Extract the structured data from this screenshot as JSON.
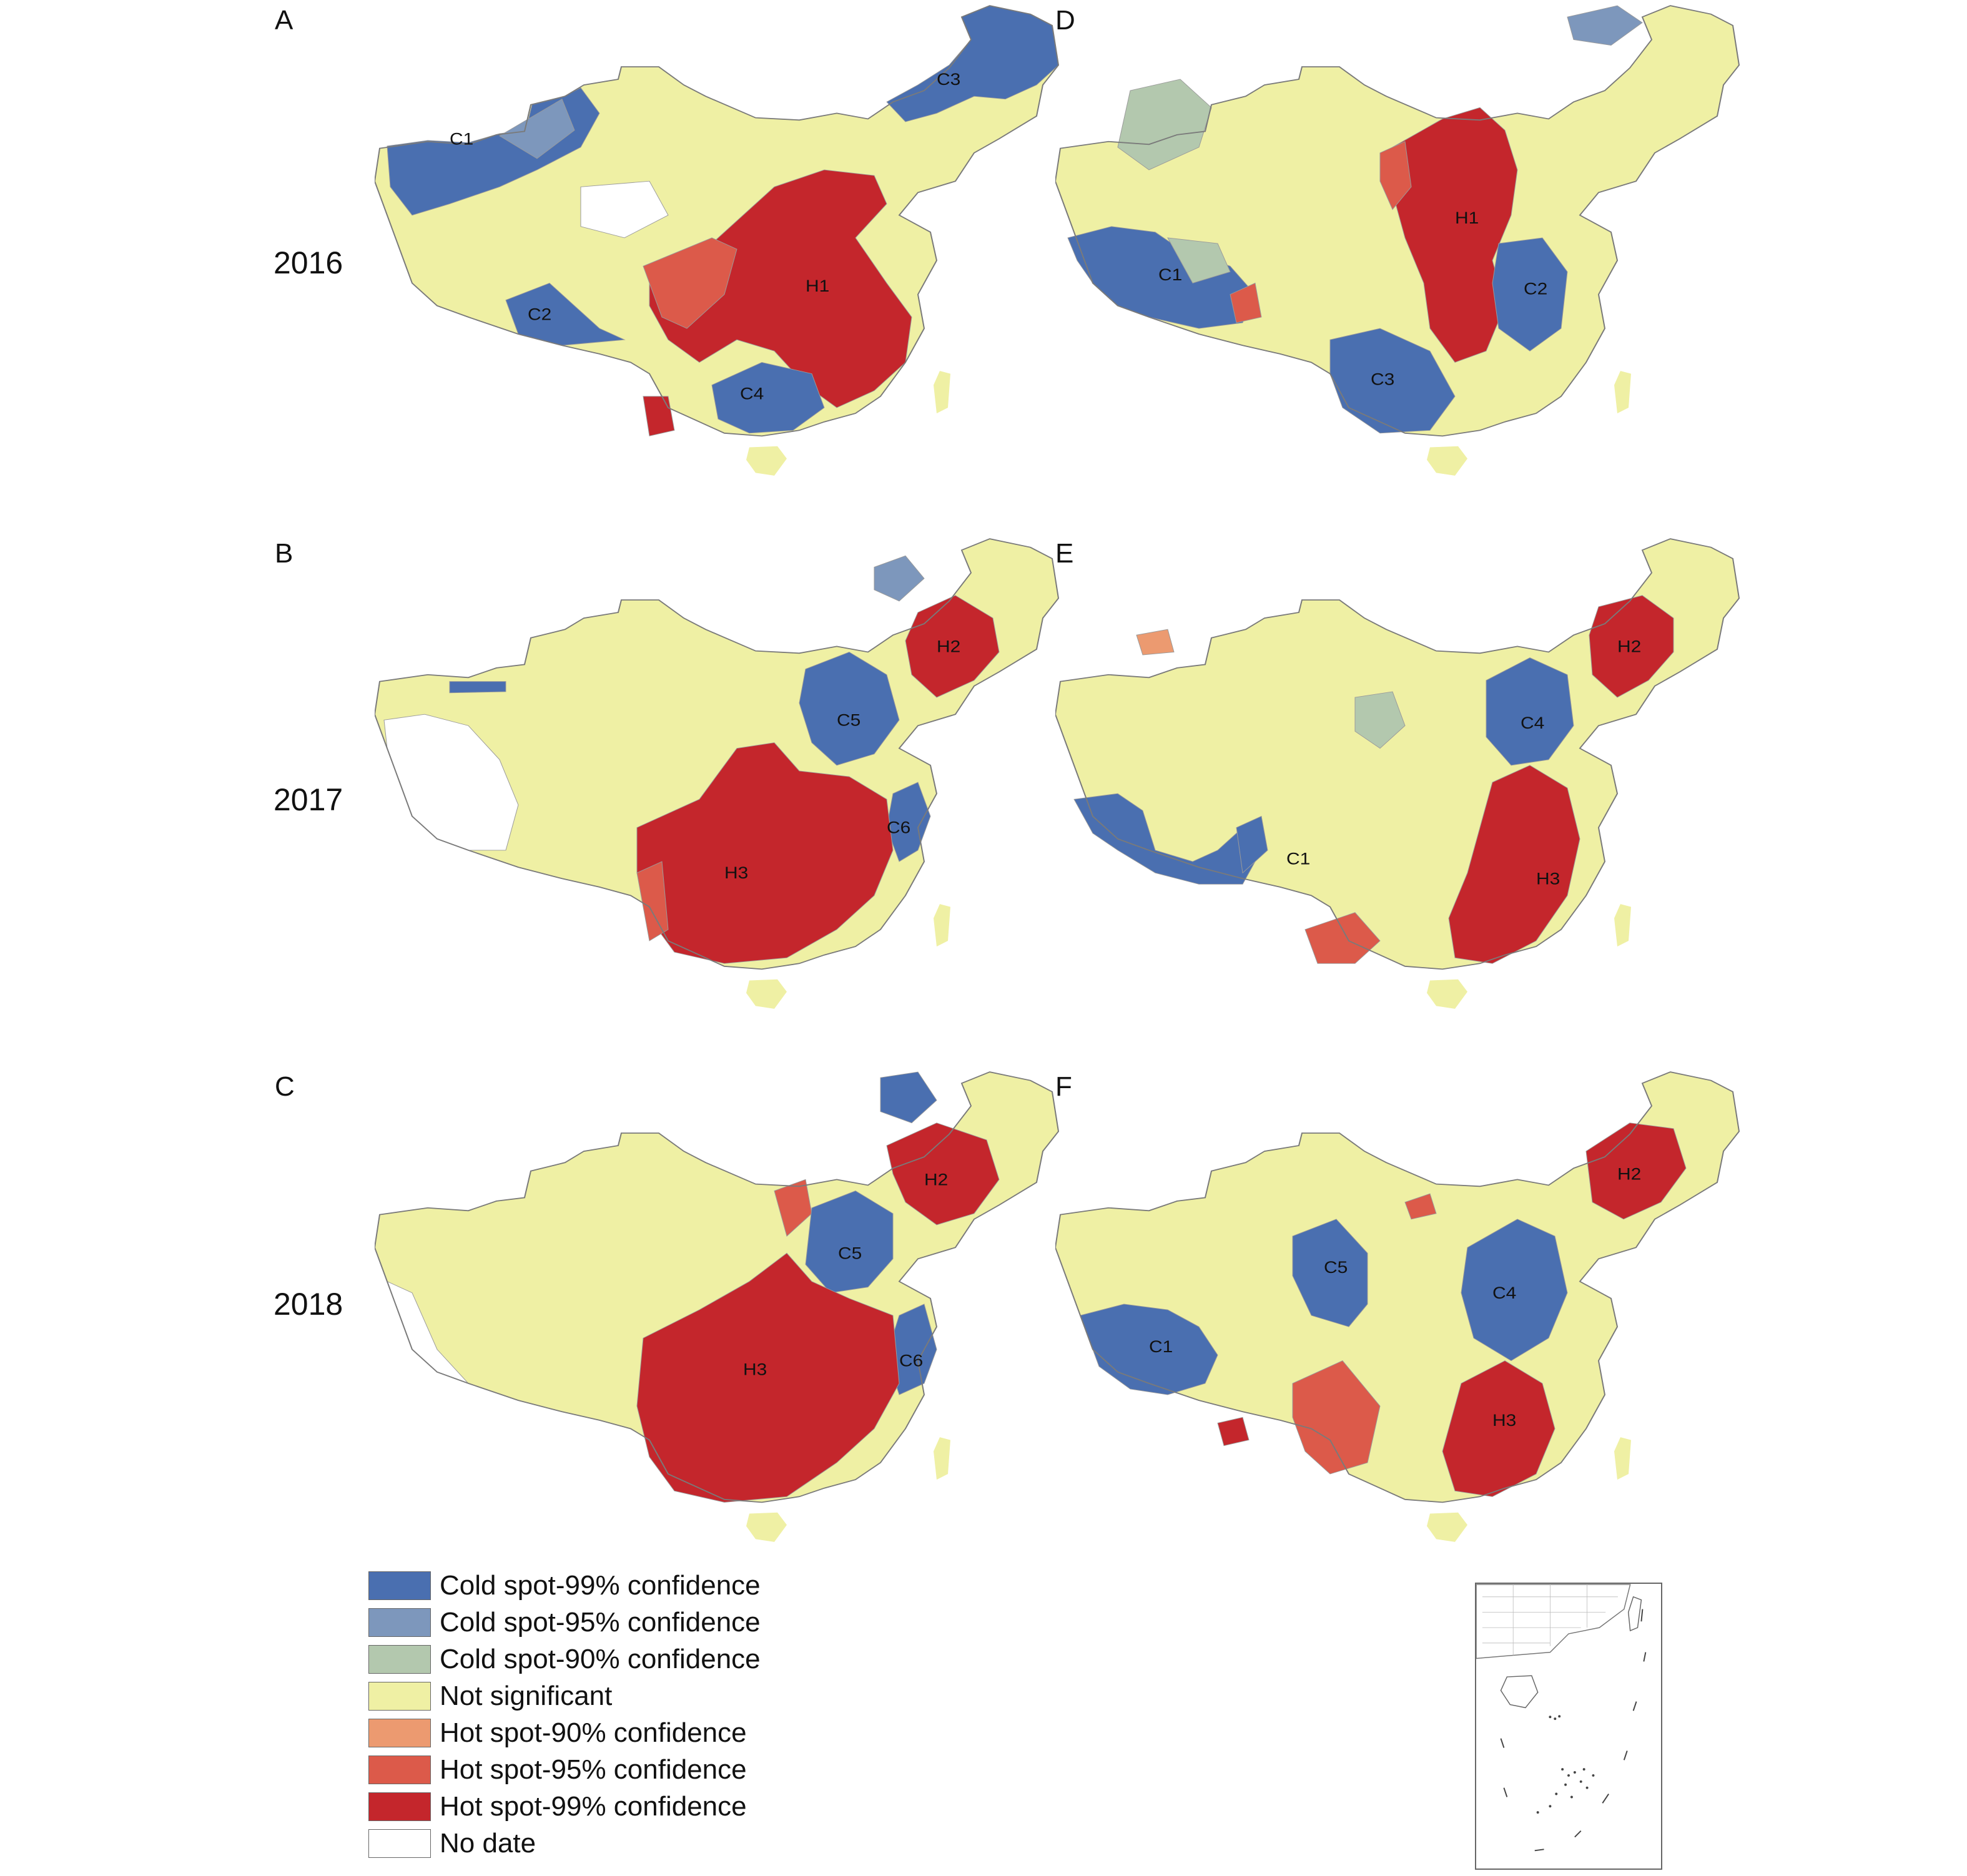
{
  "panels": [
    {
      "letter": "A",
      "clusters": [
        "C1",
        "C2",
        "C3",
        "C4",
        "H1"
      ]
    },
    {
      "letter": "D",
      "clusters": [
        "C1",
        "C2",
        "C3",
        "H1"
      ]
    },
    {
      "letter": "B",
      "clusters": [
        "C5",
        "C6",
        "H2",
        "H3"
      ]
    },
    {
      "letter": "E",
      "clusters": [
        "C1",
        "C4",
        "H2",
        "H3"
      ]
    },
    {
      "letter": "C",
      "clusters": [
        "C5",
        "C6",
        "H2",
        "H3"
      ]
    },
    {
      "letter": "F",
      "clusters": [
        "C1",
        "C4",
        "C5",
        "H2",
        "H3"
      ]
    }
  ],
  "years": [
    "2016",
    "2017",
    "2018"
  ],
  "legend": [
    {
      "label": "Cold spot-99% confidence",
      "color": "#4a6fb0"
    },
    {
      "label": "Cold spot-95% confidence",
      "color": "#7d97bc"
    },
    {
      "label": "Cold spot-90% confidence",
      "color": "#b3c8ae"
    },
    {
      "label": "Not significant",
      "color": "#eff0a4"
    },
    {
      "label": "Hot spot-90% confidence",
      "color": "#ec9a70"
    },
    {
      "label": "Hot spot-95% confidence",
      "color": "#dc5a4a"
    },
    {
      "label": "Hot spot-99% confidence",
      "color": "#c4262c"
    },
    {
      "label": "No date",
      "color": "#ffffff"
    }
  ],
  "colors": {
    "base": "#eff0a4",
    "nodata": "#ffffff",
    "boundary": "#8a8a8a",
    "cold99": "#4a6fb0",
    "cold95": "#7d97bc",
    "cold90": "#b3c8ae",
    "hot90": "#ec9a70",
    "hot95": "#dc5a4a",
    "hot99": "#c4262c"
  }
}
